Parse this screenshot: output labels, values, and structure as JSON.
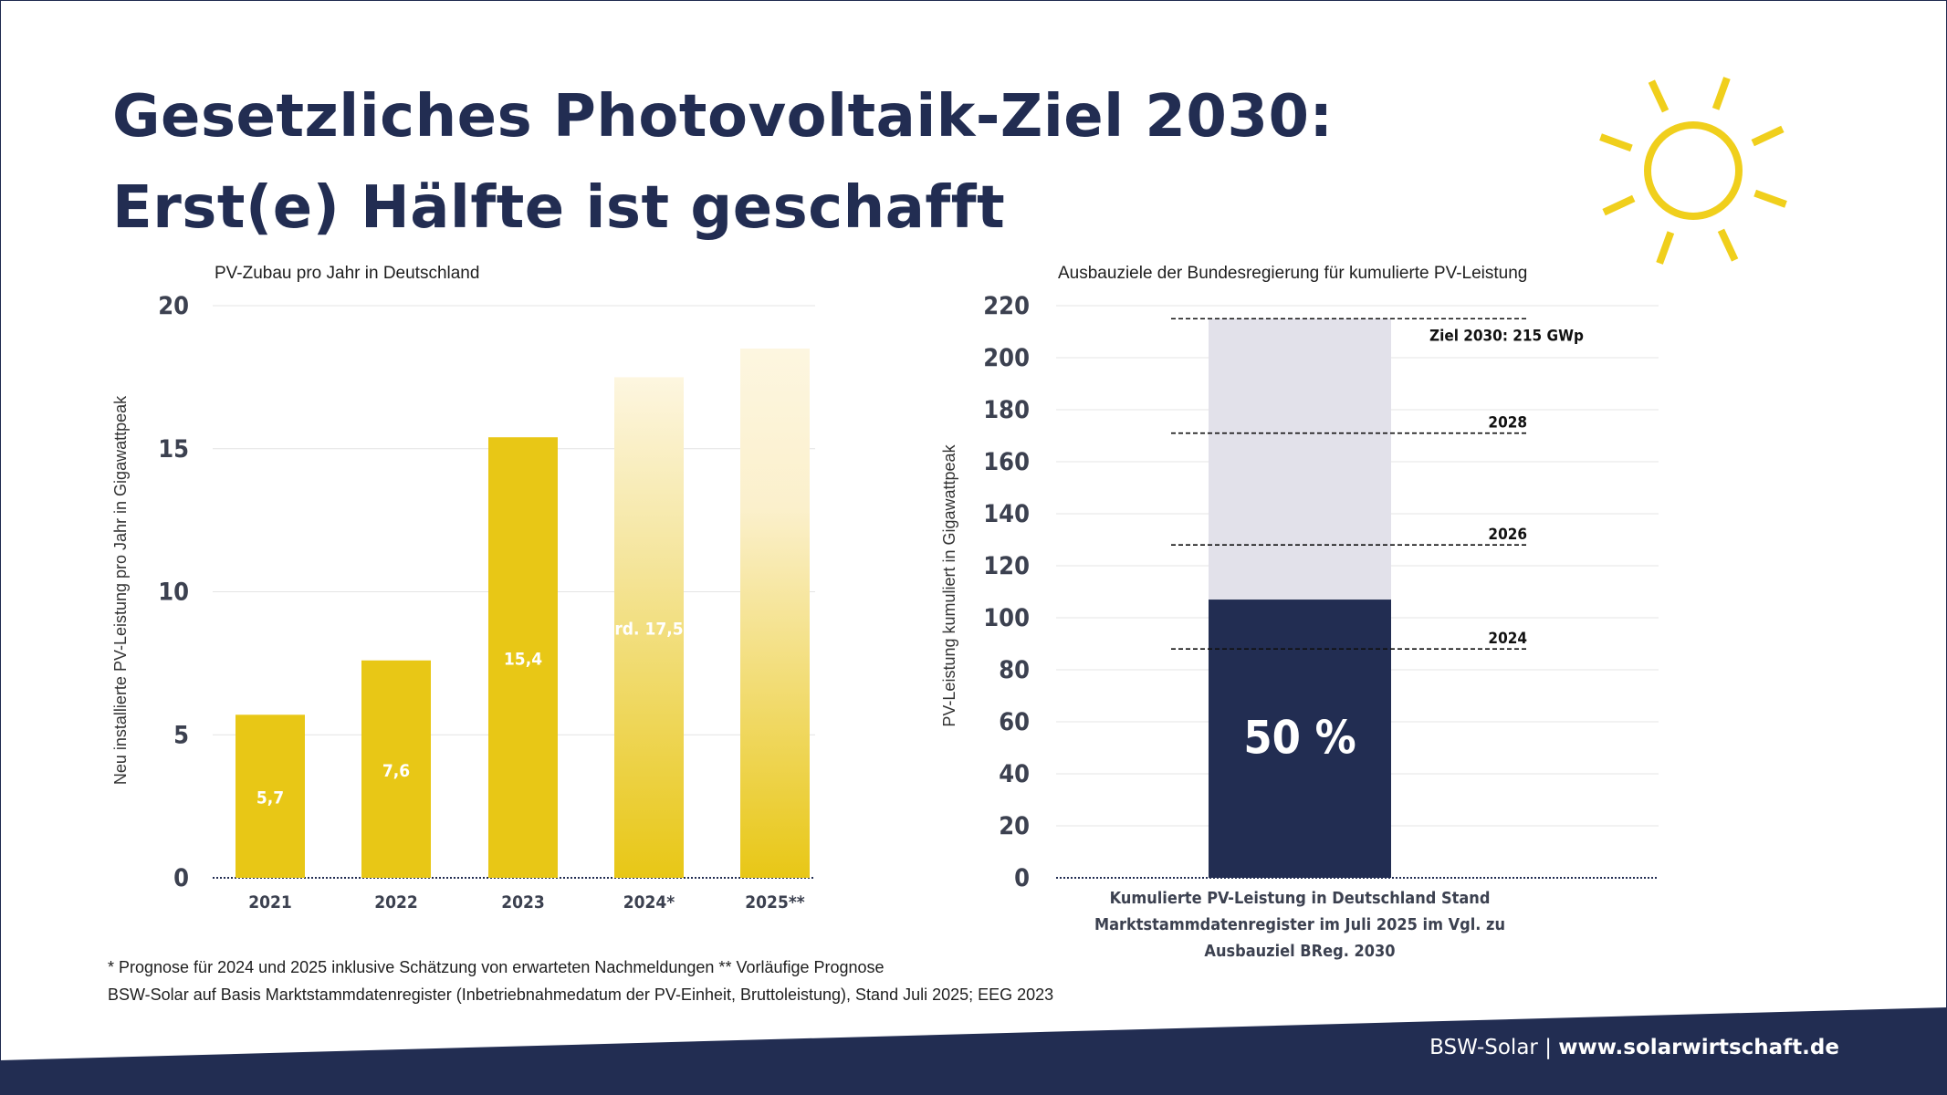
{
  "title_line1": "Gesetzliches Photovoltaik-Ziel 2030:",
  "title_line2": "Erst(e) Hälfte ist geschafft",
  "footnote_1": "* Prognose für 2024 und 2025 inklusive Schätzung von erwarteten Nachmeldungen  ** Vorläufige Prognose",
  "footnote_2": "BSW-Solar auf Basis Marktstammdatenregister (Inbetriebnahmedatum der PV-Einheit, Bruttoleistung), Stand Juli 2025; EEG 2023",
  "footer": {
    "brand": "BSW-Solar",
    "separator": "|",
    "url": "www.solarwirtschaft.de"
  },
  "colors": {
    "navy": "#222d52",
    "yellow": "#e8c716",
    "yellow_light": "#fdf6e0",
    "target_grey": "#e2e1ea",
    "sun": "#f0cf1c"
  },
  "icons": [
    "sun-icon"
  ],
  "chart_data": [
    {
      "type": "bar",
      "title": "PV-Zubau pro Jahr in Deutschland",
      "ylabel": "Neu installierte PV-Leistung pro Jahr in Gigawattpeak",
      "xlabel": "",
      "categories": [
        "2021",
        "2022",
        "2023",
        "2024*",
        "2025**"
      ],
      "values": [
        5.7,
        7.6,
        15.4,
        17.5,
        18.5
      ],
      "data_labels": [
        "5,7",
        "7,6",
        "15,4",
        "rd. 17,5",
        ""
      ],
      "ylim": [
        0,
        20
      ],
      "yticks": [
        "0",
        "5",
        "10",
        "15",
        "20"
      ],
      "grid": true
    },
    {
      "type": "bar",
      "title": "Ausbauziele der Bundesregierung für kumulierte PV-Leistung",
      "ylabel": "PV-Leistung kumuliert in Gigawattpeak",
      "xlabel": "",
      "category_label": "Kumulierte PV-Leistung in Deutschland Stand Marktstammdatenregister im Juli 2025 im Vgl. zu Ausbauziel BReg. 2030",
      "category_label_lines": [
        "Kumulierte PV-Leistung in Deutschland Stand",
        "Marktstammdatenregister im Juli 2025 im Vgl. zu",
        "Ausbauziel BReg. 2030"
      ],
      "series": [
        {
          "name": "",
          "values": [
            107
          ]
        },
        {
          "name": "",
          "values": [
            215
          ]
        }
      ],
      "bar_label": "50 %",
      "targets": [
        {
          "label": "Ziel 2030: 215 GWp",
          "value": 215
        },
        {
          "label": "2028",
          "value": 171
        },
        {
          "label": "2026",
          "value": 128
        },
        {
          "label": "2024",
          "value": 88
        }
      ],
      "ylim": [
        0,
        220
      ],
      "yticks": [
        "0",
        "20",
        "40",
        "60",
        "80",
        "100",
        "120",
        "140",
        "160",
        "180",
        "200",
        "220"
      ],
      "grid": true
    }
  ]
}
